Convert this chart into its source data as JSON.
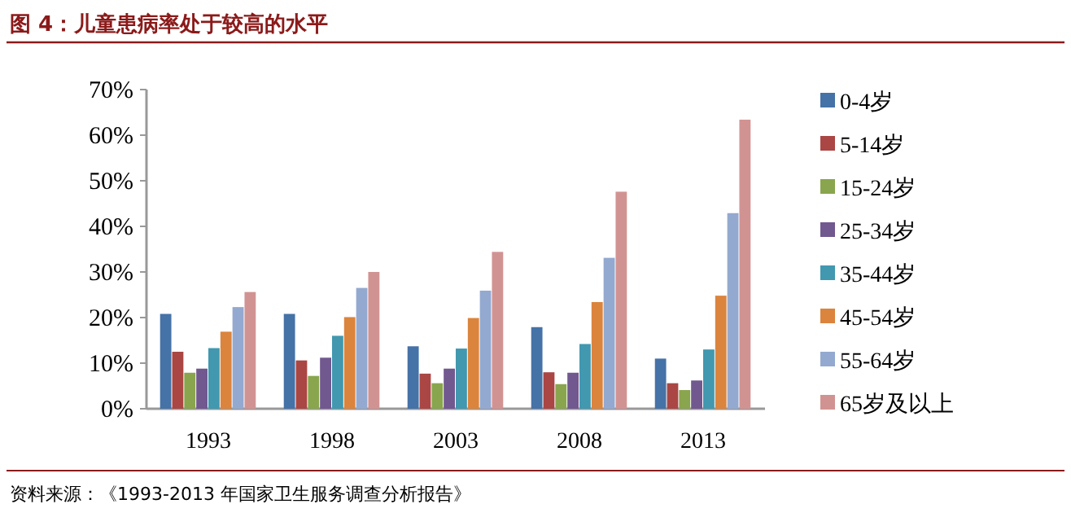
{
  "chart_data": {
    "type": "bar",
    "title": "图 4：儿童患病率处于较高的水平",
    "categories": [
      "1993",
      "1998",
      "2003",
      "2008",
      "2013"
    ],
    "series": [
      {
        "name": "0-4岁",
        "color": "#4572a7",
        "values": [
          20.8,
          20.8,
          13.7,
          17.9,
          11.0
        ]
      },
      {
        "name": "5-14岁",
        "color": "#aa4643",
        "values": [
          12.5,
          10.6,
          7.7,
          8.0,
          5.6
        ]
      },
      {
        "name": "15-24岁",
        "color": "#89a54e",
        "values": [
          7.9,
          7.2,
          5.6,
          5.4,
          4.1
        ]
      },
      {
        "name": "25-34岁",
        "color": "#71588f",
        "values": [
          8.8,
          11.2,
          8.8,
          7.9,
          6.2
        ]
      },
      {
        "name": "35-44岁",
        "color": "#4198af",
        "values": [
          13.3,
          16.0,
          13.2,
          14.2,
          13.0
        ]
      },
      {
        "name": "45-54岁",
        "color": "#db843d",
        "values": [
          16.9,
          20.1,
          19.9,
          23.4,
          24.8
        ]
      },
      {
        "name": "55-64岁",
        "color": "#93a9cf",
        "values": [
          22.3,
          26.5,
          25.9,
          33.1,
          42.9
        ]
      },
      {
        "name": "65岁及以上",
        "color": "#d19392",
        "values": [
          25.6,
          30.0,
          34.4,
          47.6,
          63.4
        ]
      }
    ],
    "ylim": [
      0,
      70
    ],
    "yticks": [
      {
        "value": 0,
        "label": "0%"
      },
      {
        "value": 10,
        "label": "10%"
      },
      {
        "value": 20,
        "label": "20%"
      },
      {
        "value": 30,
        "label": "30%"
      },
      {
        "value": 40,
        "label": "40%"
      },
      {
        "value": 50,
        "label": "50%"
      },
      {
        "value": 60,
        "label": "60%"
      },
      {
        "value": 70,
        "label": "70%"
      }
    ],
    "grid": false,
    "legend": "right",
    "annotations": [
      "资料来源：《1993-2013 年国家卫生服务调查分析报告》"
    ]
  }
}
